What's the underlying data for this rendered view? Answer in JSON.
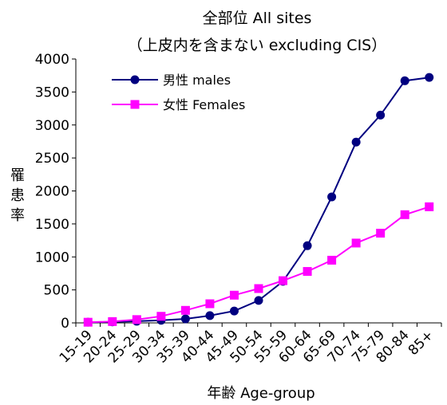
{
  "chart_data": {
    "type": "line",
    "title": "全部位 All sites",
    "subtitle": "（上皮内を含まない excluding CIS）",
    "xlabel": "年齢 Age-group",
    "ylabel": "罹患率",
    "ylim": [
      0,
      4000
    ],
    "yticks": [
      0,
      500,
      1000,
      1500,
      2000,
      2500,
      3000,
      3500,
      4000
    ],
    "grid": false,
    "legend_position": "top-left",
    "categories": [
      "15-19",
      "20-24",
      "25-29",
      "30-34",
      "35-39",
      "40-44",
      "45-49",
      "50-54",
      "55-59",
      "60-64",
      "65-69",
      "70-74",
      "75-79",
      "80-84",
      "85+"
    ],
    "series": [
      {
        "name": "男性 males",
        "color": "#000080",
        "marker": "circle",
        "values": [
          10,
          15,
          25,
          40,
          60,
          110,
          180,
          340,
          630,
          1170,
          1910,
          2740,
          3150,
          3670,
          3720
        ]
      },
      {
        "name": "女性 Females",
        "color": "#ff00ff",
        "marker": "square",
        "values": [
          10,
          20,
          50,
          100,
          190,
          290,
          420,
          520,
          640,
          780,
          950,
          1210,
          1360,
          1640,
          1760
        ]
      }
    ]
  }
}
